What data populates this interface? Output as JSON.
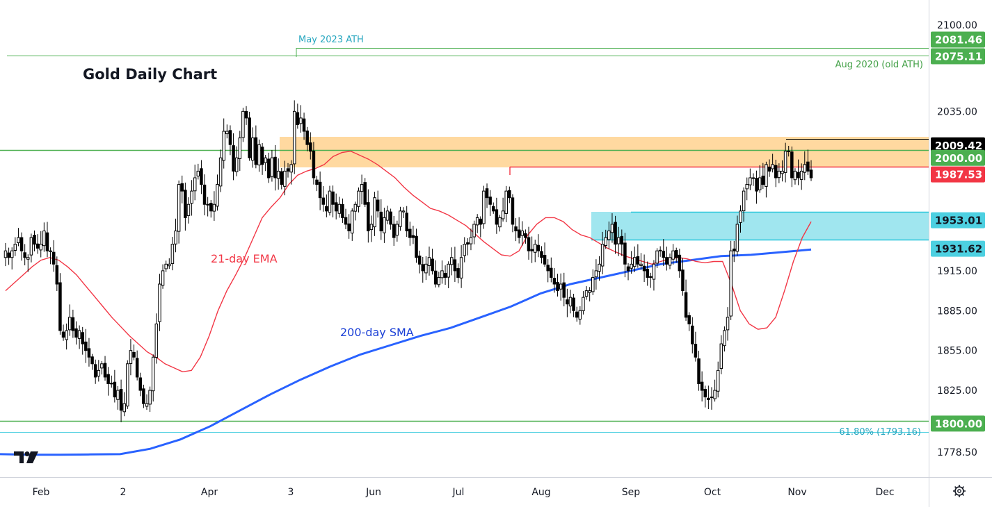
{
  "chart_data": {
    "type": "candlestick",
    "title": "Gold Daily Chart",
    "x_ticks": [
      "Feb",
      "2",
      "Apr",
      "3",
      "Jun",
      "Jul",
      "Aug",
      "Sep",
      "Oct",
      "Nov",
      "Dec"
    ],
    "y_ticks": [
      2100.0,
      2035.0,
      1915.0,
      1885.0,
      1855.0,
      1825.0,
      1778.5
    ],
    "y_tick_labels": [
      "2100.00",
      "2035.00",
      "1915.00",
      "1885.00",
      "1855.00",
      "1825.00",
      "1778.50"
    ],
    "ylim": [
      1764,
      2107
    ],
    "price_levels": [
      {
        "label": "2081.46",
        "value": 2081.46,
        "color": "#4caf50",
        "text_color": "#ffffff"
      },
      {
        "label": "2075.11",
        "value": 2075.11,
        "color": "#4caf50",
        "text_color": "#ffffff"
      },
      {
        "label": "2009.42",
        "value": 2009.42,
        "color": "#000000",
        "text_color": "#ffffff"
      },
      {
        "label": "2000.00",
        "value": 2000.0,
        "color": "#4caf50",
        "text_color": "#ffffff"
      },
      {
        "label": "1987.53",
        "value": 1987.53,
        "color": "#f23645",
        "text_color": "#ffffff"
      },
      {
        "label": "1953.01",
        "value": 1953.01,
        "color": "#4dd0e1",
        "text_color": "#131722"
      },
      {
        "label": "1931.62",
        "value": 1931.62,
        "color": "#4dd0e1",
        "text_color": "#131722"
      },
      {
        "label": "1800.00",
        "value": 1800.0,
        "color": "#4caf50",
        "text_color": "#ffffff"
      }
    ],
    "annotations": {
      "may_ath": "May 2023 ATH",
      "aug_ath": "Aug 2020 (old ATH)",
      "fib": "61.80% (1793.16)",
      "ema": "21-day EMA",
      "sma": "200-day SMA"
    },
    "zones": [
      {
        "name": "resistance",
        "low": 1987.53,
        "high": 2009.42,
        "color": "#ffcc80"
      },
      {
        "name": "support",
        "low": 1931.62,
        "high": 1953.01,
        "color": "#80deea"
      }
    ],
    "colors": {
      "up": "#ffffff",
      "down": "#000000",
      "ema": "#f23645",
      "sma": "#2962ff",
      "level": "#4caf50",
      "fib": "#4dd0e1"
    },
    "closes": [
      1930,
      1925,
      1930,
      1935,
      1940,
      1930,
      1925,
      1925,
      1940,
      1935,
      1932,
      1935,
      1945,
      1930,
      1930,
      1920,
      1905,
      1870,
      1865,
      1870,
      1880,
      1870,
      1865,
      1870,
      1860,
      1855,
      1850,
      1845,
      1835,
      1840,
      1845,
      1835,
      1830,
      1830,
      1820,
      1825,
      1810,
      1815,
      1845,
      1855,
      1850,
      1835,
      1825,
      1815,
      1815,
      1825,
      1850,
      1875,
      1905,
      1915,
      1920,
      1920,
      1935,
      1945,
      1980,
      1975,
      1955,
      1965,
      1975,
      1985,
      1990,
      1980,
      1965,
      1965,
      1960,
      1965,
      1980,
      2000,
      2020,
      2020,
      2010,
      1990,
      2000,
      2015,
      2035,
      2030,
      2000,
      2015,
      1995,
      2010,
      1995,
      2000,
      1985,
      2000,
      1985,
      1990,
      1980,
      1990,
      1990,
      1995,
      2035,
      2025,
      2030,
      2020,
      2010,
      2005,
      1985,
      1980,
      1970,
      1965,
      1960,
      1975,
      1965,
      1960,
      1965,
      1955,
      1950,
      1945,
      1960,
      1965,
      1975,
      1980,
      1965,
      1945,
      1950,
      1970,
      1960,
      1945,
      1955,
      1960,
      1950,
      1940,
      1950,
      1960,
      1960,
      1945,
      1940,
      1940,
      1925,
      1920,
      1915,
      1920,
      1925,
      1915,
      1905,
      1910,
      1915,
      1910,
      1920,
      1925,
      1915,
      1910,
      1925,
      1935,
      1935,
      1940,
      1950,
      1955,
      1950,
      1975,
      1970,
      1965,
      1960,
      1950,
      1955,
      1960,
      1975,
      1970,
      1950,
      1945,
      1940,
      1945,
      1940,
      1930,
      1930,
      1935,
      1930,
      1925,
      1920,
      1915,
      1910,
      1905,
      1900,
      1905,
      1895,
      1890,
      1895,
      1885,
      1880,
      1885,
      1895,
      1900,
      1900,
      1910,
      1915,
      1920,
      1935,
      1940,
      1945,
      1950,
      1935,
      1940,
      1935,
      1920,
      1915,
      1920,
      1925,
      1920,
      1920,
      1915,
      1910,
      1910,
      1920,
      1930,
      1930,
      1925,
      1920,
      1925,
      1930,
      1925,
      1915,
      1900,
      1880,
      1875,
      1860,
      1850,
      1830,
      1825,
      1820,
      1818,
      1820,
      1825,
      1840,
      1860,
      1870,
      1880,
      1930,
      1930,
      1950,
      1960,
      1975,
      1980,
      1985,
      1985,
      1975,
      1985,
      1980,
      1995,
      1990,
      1995,
      1985,
      1990,
      1990,
      2005,
      2005,
      1985,
      1990,
      1985,
      1990,
      1995,
      1990,
      1985
    ],
    "ema21": [
      1900,
      1906,
      1912,
      1918,
      1923,
      1925,
      1923,
      1918,
      1912,
      1904,
      1896,
      1888,
      1880,
      1873,
      1866,
      1860,
      1854,
      1850,
      1845,
      1842,
      1839,
      1840,
      1850,
      1866,
      1885,
      1900,
      1912,
      1925,
      1940,
      1955,
      1963,
      1970,
      1980,
      1987,
      1990,
      1992,
      1995,
      2001,
      2004,
      2005,
      2002,
      1999,
      1995,
      1990,
      1985,
      1978,
      1972,
      1967,
      1962,
      1960,
      1957,
      1953,
      1949,
      1943,
      1937,
      1932,
      1927,
      1926,
      1930,
      1942,
      1950,
      1955,
      1955,
      1952,
      1946,
      1942,
      1940,
      1936,
      1932,
      1929,
      1926,
      1924,
      1922,
      1920,
      1922,
      1924,
      1925,
      1924,
      1922,
      1921,
      1922,
      1922,
      1905,
      1885,
      1875,
      1871,
      1872,
      1880,
      1900,
      1922,
      1940,
      1952
    ]
  }
}
